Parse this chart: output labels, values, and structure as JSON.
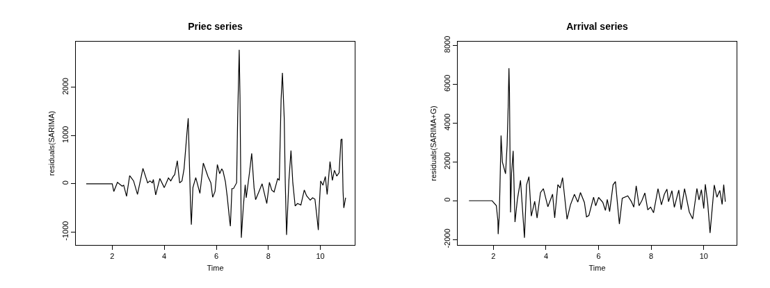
{
  "chart_data": [
    {
      "type": "line",
      "title": "Priec series",
      "xlabel": "Time",
      "ylabel": "residuals(SARIMA)",
      "grid": false,
      "line_style": "solid",
      "xlim": [
        0.6,
        11.32
      ],
      "ylim": [
        -1270,
        2950
      ],
      "xticks": [
        2,
        4,
        6,
        8,
        10
      ],
      "yticks": [
        -1000,
        0,
        1000,
        2000
      ],
      "x": [
        1.0,
        2.0,
        2.06,
        2.2,
        2.38,
        2.44,
        2.55,
        2.67,
        2.82,
        2.97,
        3.18,
        3.36,
        3.45,
        3.54,
        3.58,
        3.67,
        3.83,
        4.0,
        4.16,
        4.25,
        4.34,
        4.4,
        4.5,
        4.59,
        4.68,
        4.76,
        4.87,
        4.92,
        5.01,
        5.04,
        5.1,
        5.21,
        5.37,
        5.5,
        5.68,
        5.79,
        5.86,
        5.95,
        6.04,
        6.13,
        6.21,
        6.26,
        6.35,
        6.42,
        6.51,
        6.54,
        6.6,
        6.66,
        6.78,
        6.82,
        6.88,
        6.91,
        6.96,
        7.04,
        7.11,
        7.15,
        7.27,
        7.36,
        7.45,
        7.51,
        7.64,
        7.76,
        7.94,
        8.04,
        8.13,
        8.22,
        8.36,
        8.42,
        8.49,
        8.54,
        8.61,
        8.65,
        8.7,
        8.79,
        8.87,
        8.94,
        9.03,
        9.12,
        9.25,
        9.38,
        9.47,
        9.61,
        9.7,
        9.79,
        9.88,
        9.92,
        9.95,
        10.01,
        10.1,
        10.19,
        10.26,
        10.37,
        10.46,
        10.54,
        10.63,
        10.72,
        10.79,
        10.83,
        10.87,
        10.9,
        10.97
      ],
      "series": [
        {
          "color": "#000000",
          "values": [
            0,
            0,
            -160,
            30,
            -50,
            -30,
            -260,
            170,
            60,
            -220,
            320,
            20,
            60,
            20,
            90,
            -230,
            110,
            -80,
            120,
            60,
            150,
            190,
            480,
            20,
            60,
            310,
            1050,
            1360,
            -470,
            -850,
            -80,
            130,
            -200,
            430,
            150,
            20,
            -280,
            -160,
            400,
            210,
            310,
            260,
            40,
            -270,
            -750,
            -880,
            -100,
            -100,
            20,
            1360,
            2780,
            1800,
            -1120,
            -460,
            -20,
            -290,
            210,
            630,
            -80,
            -330,
            -160,
            0,
            -410,
            30,
            -130,
            -170,
            110,
            70,
            1750,
            2300,
            1360,
            20,
            -1060,
            70,
            690,
            20,
            -460,
            -410,
            -440,
            -130,
            -250,
            -340,
            -290,
            -320,
            -750,
            -960,
            -520,
            60,
            -30,
            150,
            -220,
            460,
            70,
            280,
            160,
            230,
            910,
            930,
            -150,
            -500,
            -290
          ]
        }
      ]
    },
    {
      "type": "line",
      "title": "Arrival series",
      "xlabel": "Time",
      "ylabel": "residuals(SARIMA+G)",
      "grid": false,
      "line_style": "solid",
      "xlim": [
        0.64,
        11.25
      ],
      "ylim": [
        -2280,
        8200
      ],
      "xticks": [
        2,
        4,
        6,
        8,
        10
      ],
      "yticks": [
        -2000,
        0,
        2000,
        4000,
        6000,
        8000
      ],
      "x": [
        1.07,
        1.95,
        2.11,
        2.17,
        2.18,
        2.22,
        2.25,
        2.29,
        2.34,
        2.46,
        2.52,
        2.56,
        2.59,
        2.61,
        2.65,
        2.69,
        2.75,
        2.82,
        2.91,
        3.03,
        3.11,
        3.18,
        3.26,
        3.35,
        3.44,
        3.57,
        3.66,
        3.79,
        3.9,
        4.07,
        4.25,
        4.33,
        4.45,
        4.54,
        4.63,
        4.8,
        4.93,
        5.08,
        5.21,
        5.31,
        5.46,
        5.54,
        5.63,
        5.81,
        5.89,
        6.0,
        6.16,
        6.26,
        6.33,
        6.42,
        6.55,
        6.64,
        6.79,
        6.9,
        7.11,
        7.25,
        7.34,
        7.43,
        7.54,
        7.65,
        7.76,
        7.87,
        7.98,
        8.09,
        8.26,
        8.39,
        8.5,
        8.6,
        8.66,
        8.79,
        8.88,
        9.05,
        9.14,
        9.27,
        9.45,
        9.58,
        9.74,
        9.82,
        9.91,
        10.0,
        10.06,
        10.15,
        10.24,
        10.4,
        10.5,
        10.61,
        10.7,
        10.76,
        10.82
      ],
      "series": [
        {
          "color": "#000000",
          "values": [
            0,
            0,
            -250,
            -1040,
            -1720,
            -800,
            830,
            3360,
            2000,
            1390,
            2860,
            4810,
            6830,
            5610,
            -600,
            1430,
            2570,
            -1100,
            60,
            1050,
            -530,
            -1910,
            810,
            1240,
            -790,
            -30,
            -890,
            420,
            620,
            -310,
            340,
            -880,
            830,
            660,
            1190,
            -950,
            -210,
            330,
            -70,
            420,
            -90,
            -830,
            -760,
            180,
            -260,
            170,
            -80,
            -500,
            70,
            -560,
            820,
            990,
            -1200,
            130,
            250,
            -50,
            -330,
            770,
            -260,
            20,
            400,
            -470,
            -330,
            -620,
            620,
            -210,
            330,
            600,
            -50,
            520,
            -340,
            550,
            -460,
            620,
            -580,
            -940,
            630,
            40,
            570,
            -400,
            850,
            -130,
            -1660,
            810,
            180,
            530,
            -190,
            830,
            -50
          ]
        }
      ]
    }
  ]
}
